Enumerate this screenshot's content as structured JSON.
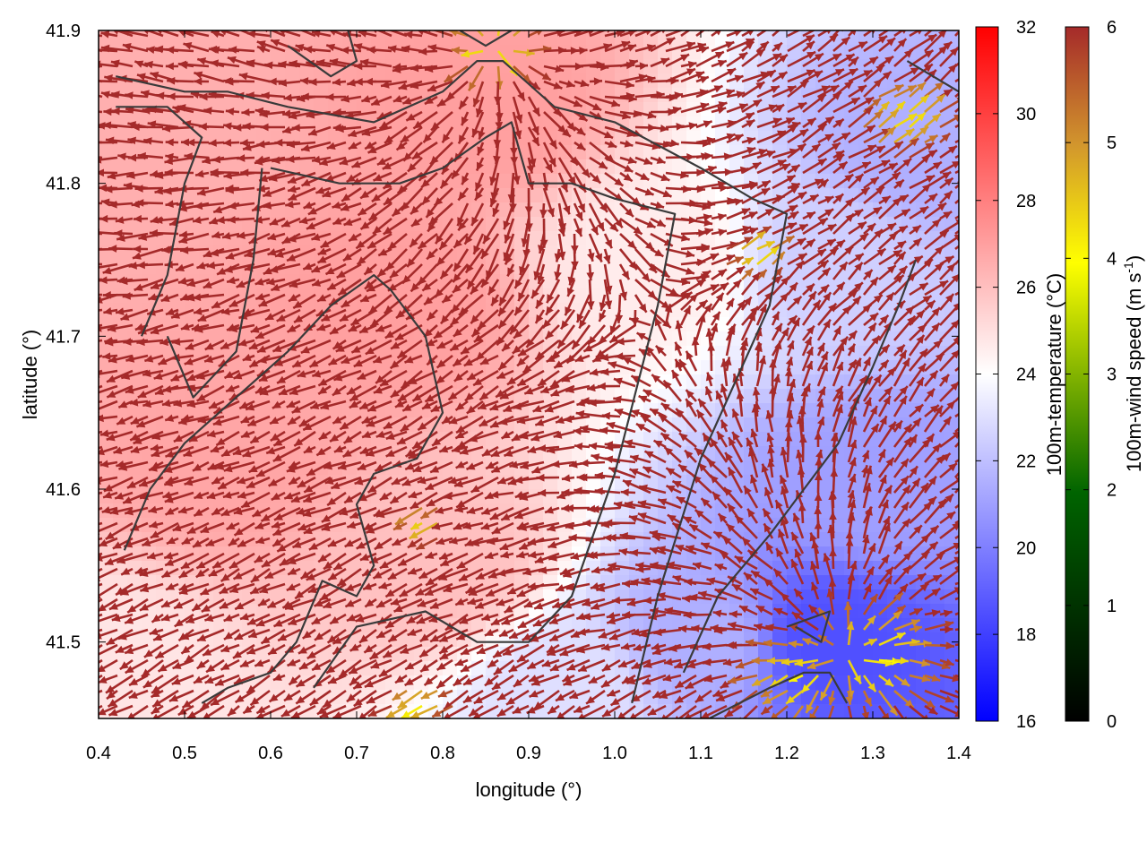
{
  "chart_data": {
    "type": "vector-field",
    "xlabel": "longitude (°)",
    "ylabel": "latitude (°)",
    "xlim": [
      0.4,
      1.4
    ],
    "ylim": [
      41.45,
      41.9
    ],
    "xticks": [
      "0.4",
      "0.5",
      "0.6",
      "0.7",
      "0.8",
      "0.9",
      "1.0",
      "1.1",
      "1.2",
      "1.3",
      "1.4"
    ],
    "yticks": [
      "41.5",
      "41.6",
      "41.7",
      "41.8",
      "41.9"
    ],
    "temperature_colorbar": {
      "label": "100m-temperature (°C)",
      "range": [
        16,
        32
      ],
      "ticks": [
        "16",
        "18",
        "20",
        "22",
        "24",
        "26",
        "28",
        "30",
        "32"
      ],
      "colors": [
        "#0000ff",
        "#ffffff",
        "#ff0000"
      ]
    },
    "wind_colorbar": {
      "label_main": "100m-wind speed (m s",
      "label_sup": "-1",
      "label_end": ")",
      "range": [
        0,
        6
      ],
      "ticks": [
        "0",
        "1",
        "2",
        "3",
        "4",
        "5",
        "6"
      ],
      "colors": [
        "#000000",
        "#006400",
        "#ffff00",
        "#d2962d",
        "#a52a2a"
      ]
    },
    "arrow_color_dominant": "#a52a2a",
    "contour_color": "#3a3a3a",
    "temperature_field": {
      "description_points": [
        {
          "lon": 0.45,
          "lat": 41.85,
          "temp": 26.5
        },
        {
          "lon": 0.55,
          "lat": 41.62,
          "temp": 26.8
        },
        {
          "lon": 0.75,
          "lat": 41.72,
          "temp": 27.0
        },
        {
          "lon": 0.85,
          "lat": 41.85,
          "temp": 27.0
        },
        {
          "lon": 0.8,
          "lat": 41.55,
          "temp": 26.0
        },
        {
          "lon": 1.05,
          "lat": 41.75,
          "temp": 24.6
        },
        {
          "lon": 1.25,
          "lat": 41.75,
          "temp": 22.5
        },
        {
          "lon": 1.35,
          "lat": 41.82,
          "temp": 21.5
        },
        {
          "lon": 1.3,
          "lat": 41.6,
          "temp": 21.0
        },
        {
          "lon": 1.25,
          "lat": 41.5,
          "temp": 18.5
        },
        {
          "lon": 1.1,
          "lat": 41.5,
          "temp": 21.5
        },
        {
          "lon": 0.95,
          "lat": 41.47,
          "temp": 23.0
        },
        {
          "lon": 0.4,
          "lat": 41.48,
          "temp": 24.8
        }
      ]
    },
    "contours": [
      [
        [
          0.42,
          41.87
        ],
        [
          0.5,
          41.86
        ],
        [
          0.55,
          41.86
        ],
        [
          0.62,
          41.85
        ],
        [
          0.72,
          41.84
        ],
        [
          0.8,
          41.86
        ],
        [
          0.84,
          41.88
        ],
        [
          0.87,
          41.88
        ],
        [
          0.93,
          41.85
        ],
        [
          1.0,
          41.84
        ],
        [
          1.1,
          41.81
        ],
        [
          1.16,
          41.79
        ],
        [
          1.2,
          41.78
        ],
        [
          1.18,
          41.72
        ],
        [
          1.1,
          41.62
        ],
        [
          1.05,
          41.53
        ],
        [
          1.02,
          41.46
        ]
      ],
      [
        [
          0.45,
          41.7
        ],
        [
          0.48,
          41.74
        ],
        [
          0.5,
          41.8
        ],
        [
          0.52,
          41.83
        ],
        [
          0.48,
          41.85
        ],
        [
          0.42,
          41.85
        ]
      ],
      [
        [
          0.59,
          41.81
        ],
        [
          0.58,
          41.75
        ],
        [
          0.56,
          41.69
        ],
        [
          0.51,
          41.66
        ],
        [
          0.48,
          41.7
        ]
      ],
      [
        [
          0.43,
          41.56
        ],
        [
          0.46,
          41.6
        ],
        [
          0.5,
          41.63
        ],
        [
          0.56,
          41.66
        ],
        [
          0.62,
          41.69
        ],
        [
          0.67,
          41.72
        ],
        [
          0.72,
          41.74
        ],
        [
          0.74,
          41.73
        ],
        [
          0.78,
          41.7
        ],
        [
          0.8,
          41.65
        ],
        [
          0.77,
          41.62
        ],
        [
          0.72,
          41.61
        ],
        [
          0.7,
          41.59
        ],
        [
          0.72,
          41.55
        ],
        [
          0.7,
          41.53
        ],
        [
          0.66,
          41.54
        ],
        [
          0.63,
          41.5
        ],
        [
          0.6,
          41.48
        ],
        [
          0.55,
          41.47
        ],
        [
          0.52,
          41.46
        ]
      ],
      [
        [
          0.65,
          41.47
        ],
        [
          0.7,
          41.51
        ],
        [
          0.78,
          41.52
        ],
        [
          0.84,
          41.5
        ],
        [
          0.9,
          41.5
        ],
        [
          0.95,
          41.53
        ],
        [
          1.0,
          41.61
        ],
        [
          1.05,
          41.72
        ],
        [
          1.07,
          41.78
        ],
        [
          1.0,
          41.79
        ],
        [
          0.95,
          41.8
        ],
        [
          0.9,
          41.8
        ],
        [
          0.88,
          41.84
        ],
        [
          0.85,
          41.83
        ],
        [
          0.8,
          41.81
        ],
        [
          0.75,
          41.8
        ],
        [
          0.68,
          41.8
        ],
        [
          0.6,
          41.81
        ]
      ],
      [
        [
          1.11,
          41.45
        ],
        [
          1.18,
          41.47
        ],
        [
          1.22,
          41.48
        ],
        [
          1.25,
          41.48
        ],
        [
          1.27,
          41.46
        ]
      ],
      [
        [
          1.2,
          41.51
        ],
        [
          1.25,
          41.52
        ],
        [
          1.24,
          41.5
        ],
        [
          1.21,
          41.51
        ]
      ],
      [
        [
          1.35,
          41.75
        ],
        [
          1.33,
          41.72
        ],
        [
          1.3,
          41.68
        ],
        [
          1.26,
          41.63
        ],
        [
          1.22,
          41.6
        ],
        [
          1.18,
          41.57
        ],
        [
          1.12,
          41.53
        ],
        [
          1.08,
          41.48
        ]
      ],
      [
        [
          0.62,
          41.89
        ],
        [
          0.67,
          41.87
        ],
        [
          0.7,
          41.88
        ],
        [
          0.69,
          41.9
        ]
      ],
      [
        [
          0.82,
          41.9
        ],
        [
          0.85,
          41.89
        ],
        [
          0.88,
          41.9
        ]
      ],
      [
        [
          1.34,
          41.88
        ],
        [
          1.37,
          41.87
        ],
        [
          1.4,
          41.86
        ]
      ]
    ],
    "wind_field": {
      "sources": [
        {
          "lon": 0.86,
          "lat": 41.89,
          "strength": 1.0
        },
        {
          "lon": 1.27,
          "lat": 41.49,
          "strength": 1.2
        }
      ],
      "low_speed_zones": [
        {
          "lon": 0.86,
          "lat": 41.89,
          "radius": 0.025
        },
        {
          "lon": 1.22,
          "lat": 41.48,
          "radius": 0.035
        },
        {
          "lon": 1.3,
          "lat": 41.49,
          "radius": 0.04
        },
        {
          "lon": 1.33,
          "lat": 41.84,
          "radius": 0.03
        },
        {
          "lon": 1.16,
          "lat": 41.75,
          "radius": 0.02
        },
        {
          "lon": 0.78,
          "lat": 41.58,
          "radius": 0.015
        },
        {
          "lon": 0.78,
          "lat": 41.46,
          "radius": 0.02
        }
      ]
    }
  }
}
